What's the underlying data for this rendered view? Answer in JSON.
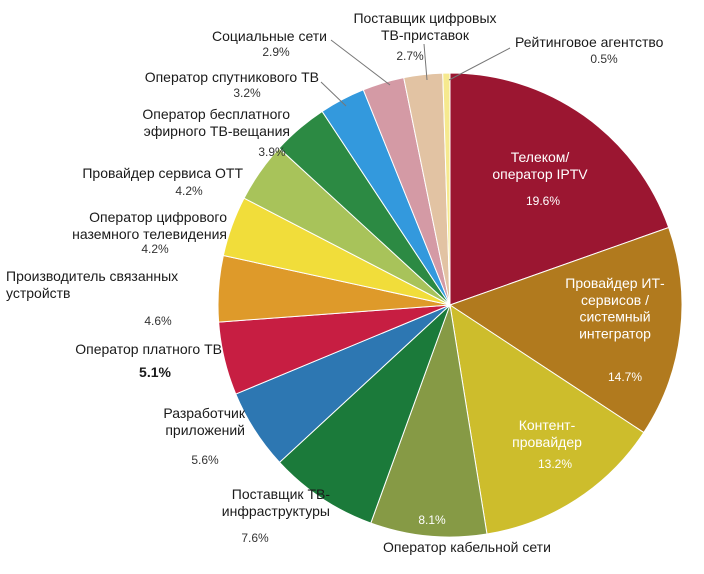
{
  "chart_data": {
    "type": "pie",
    "title": "",
    "slices": [
      {
        "label": "Телеком/\nоператор IPTV",
        "value": 19.6,
        "value_label": "19.6%",
        "color": "#9b1631"
      },
      {
        "label": "Провайдер ИТ-\nсервисов /\nсистемный\nинтегратор",
        "value": 14.7,
        "value_label": "14.7%",
        "color": "#b17a1e"
      },
      {
        "label": "Контент-\nпровайдер",
        "value": 13.2,
        "value_label": "13.2%",
        "color": "#cdbd2c"
      },
      {
        "label": "Оператор кабельной сети",
        "value": 8.1,
        "value_label": "8.1%",
        "color": "#869a45"
      },
      {
        "label": "Поставщик ТВ-\nинфраструктуры",
        "value": 7.6,
        "value_label": "7.6%",
        "color": "#1b7a3a"
      },
      {
        "label": "Разработчик\nприложений",
        "value": 5.6,
        "value_label": "5.6%",
        "color": "#2d77b2"
      },
      {
        "label": "Оператор платного ТВ",
        "value": 5.1,
        "value_label": "5.1%",
        "color": "#c71e42"
      },
      {
        "label": "Производитель связанных\nустройств",
        "value": 4.6,
        "value_label": "4.6%",
        "color": "#de9a2a"
      },
      {
        "label": "Оператор цифрового\nназемного телевидения",
        "value": 4.2,
        "value_label": "4.2%",
        "color": "#f1dd3a"
      },
      {
        "label": "Провайдер сервиса ОТТ",
        "value": 4.2,
        "value_label": "4.2%",
        "color": "#a8c35a"
      },
      {
        "label": "Оператор бесплатного\nэфирного ТВ-вещания",
        "value": 3.9,
        "value_label": "3.9%",
        "color": "#2c8a43"
      },
      {
        "label": "Оператор спутникового ТВ",
        "value": 3.2,
        "value_label": "3.2%",
        "color": "#3399dd"
      },
      {
        "label": "Социальные сети",
        "value": 2.9,
        "value_label": "2.9%",
        "color": "#d49aa5"
      },
      {
        "label": "Поставщик цифровых\nТВ-приставок",
        "value": 2.7,
        "value_label": "2.7%",
        "color": "#e2c3a3"
      },
      {
        "label": "Рейтинговое агентство",
        "value": 0.5,
        "value_label": "0.5%",
        "color": "#f6e98e"
      }
    ]
  }
}
